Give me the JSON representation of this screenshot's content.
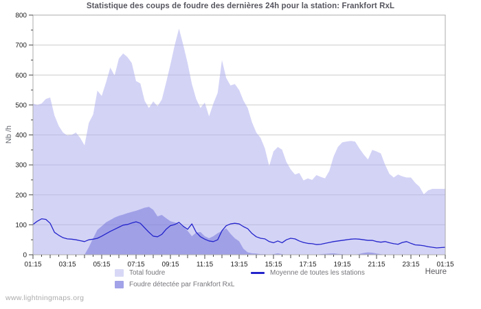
{
  "title": "Statistique des coups de foudre des dernières 24h pour la station: Frankfort RxL",
  "watermark": "www.lightningmaps.org",
  "colors": {
    "background": "#ffffff",
    "grid": "#cccccc",
    "plot_border": "#ababab",
    "tick": "#444444",
    "total_area_fill": "rgba(175,175,238,0.55)",
    "total_area_fill_flat": "#d8d8f6",
    "detected_area_fill": "rgba(105,105,215,0.48)",
    "detected_area_fill_flat": "#a2a2e8",
    "mean_line": "#2323cb",
    "title_text": "#55555e",
    "legend_text": "#76767c"
  },
  "legend": {
    "total_label": "Total foudre",
    "mean_label": "Moyenne de toutes les stations",
    "detected_label": "Foudre détectée par Frankfort RxL"
  },
  "chart_data": {
    "type": "area",
    "title": "Statistique des coups de foudre des dernières 24h pour la station: Frankfort RxL",
    "xlabel": "Heure",
    "ylabel": "Nb /h",
    "ylim": [
      0,
      800
    ],
    "y_tick_step": 100,
    "y_minor_step": 50,
    "grid": "horizontal",
    "legend_position": "bottom",
    "x_start": "01:15",
    "x_interval_minutes": 15,
    "x_tick_labels": [
      "01:15",
      "03:15",
      "05:15",
      "07:15",
      "09:15",
      "11:15",
      "13:15",
      "15:15",
      "17:15",
      "19:15",
      "21:15",
      "23:15",
      "01:15"
    ],
    "x_points_per_tick_label": 8,
    "series": [
      {
        "name": "Total foudre",
        "type": "area",
        "values": [
          505,
          500,
          505,
          520,
          525,
          465,
          430,
          408,
          398,
          400,
          408,
          390,
          365,
          440,
          468,
          548,
          530,
          575,
          625,
          598,
          655,
          672,
          660,
          640,
          580,
          572,
          514,
          490,
          512,
          496,
          518,
          575,
          635,
          700,
          755,
          700,
          640,
          570,
          520,
          490,
          508,
          462,
          505,
          540,
          650,
          590,
          565,
          570,
          550,
          515,
          490,
          442,
          408,
          390,
          355,
          296,
          345,
          360,
          351,
          310,
          285,
          268,
          273,
          248,
          255,
          250,
          266,
          260,
          255,
          280,
          328,
          360,
          375,
          378,
          380,
          378,
          355,
          335,
          318,
          350,
          345,
          338,
          300,
          270,
          258,
          268,
          262,
          258,
          258,
          240,
          227,
          202,
          215,
          220,
          220,
          220,
          220
        ]
      },
      {
        "name": "Foudre détectée par Frankfort RxL",
        "type": "area",
        "values": [
          0,
          0,
          0,
          0,
          0,
          0,
          0,
          0,
          0,
          0,
          0,
          0,
          0,
          25,
          55,
          83,
          95,
          108,
          116,
          124,
          130,
          134,
          139,
          143,
          147,
          152,
          157,
          160,
          150,
          128,
          133,
          122,
          112,
          108,
          103,
          93,
          80,
          62,
          74,
          76,
          62,
          55,
          62,
          72,
          80,
          88,
          70,
          55,
          45,
          20,
          8,
          5,
          4,
          2,
          2,
          0,
          2,
          5,
          2,
          0,
          0,
          0,
          0,
          0,
          0,
          0,
          0,
          2,
          3,
          4,
          5,
          3,
          2,
          0,
          0,
          0,
          3,
          6,
          8,
          7,
          4,
          2,
          0,
          0,
          0,
          0,
          0,
          0,
          0,
          0,
          0,
          0,
          0,
          0,
          0,
          0,
          0
        ]
      },
      {
        "name": "Moyenne de toutes les stations",
        "type": "line",
        "values": [
          101,
          112,
          120,
          118,
          105,
          75,
          65,
          57,
          53,
          52,
          50,
          47,
          44,
          50,
          52,
          55,
          62,
          70,
          78,
          85,
          92,
          99,
          101,
          106,
          110,
          105,
          90,
          75,
          62,
          60,
          68,
          85,
          97,
          101,
          108,
          95,
          85,
          103,
          75,
          60,
          52,
          46,
          44,
          50,
          80,
          97,
          103,
          105,
          103,
          94,
          87,
          71,
          60,
          55,
          53,
          44,
          40,
          46,
          40,
          50,
          55,
          53,
          46,
          41,
          38,
          37,
          34,
          35,
          38,
          41,
          44,
          46,
          48,
          50,
          52,
          53,
          52,
          50,
          48,
          48,
          44,
          42,
          44,
          40,
          37,
          35,
          41,
          44,
          38,
          33,
          32,
          30,
          27,
          25,
          23,
          24,
          25
        ]
      }
    ]
  }
}
